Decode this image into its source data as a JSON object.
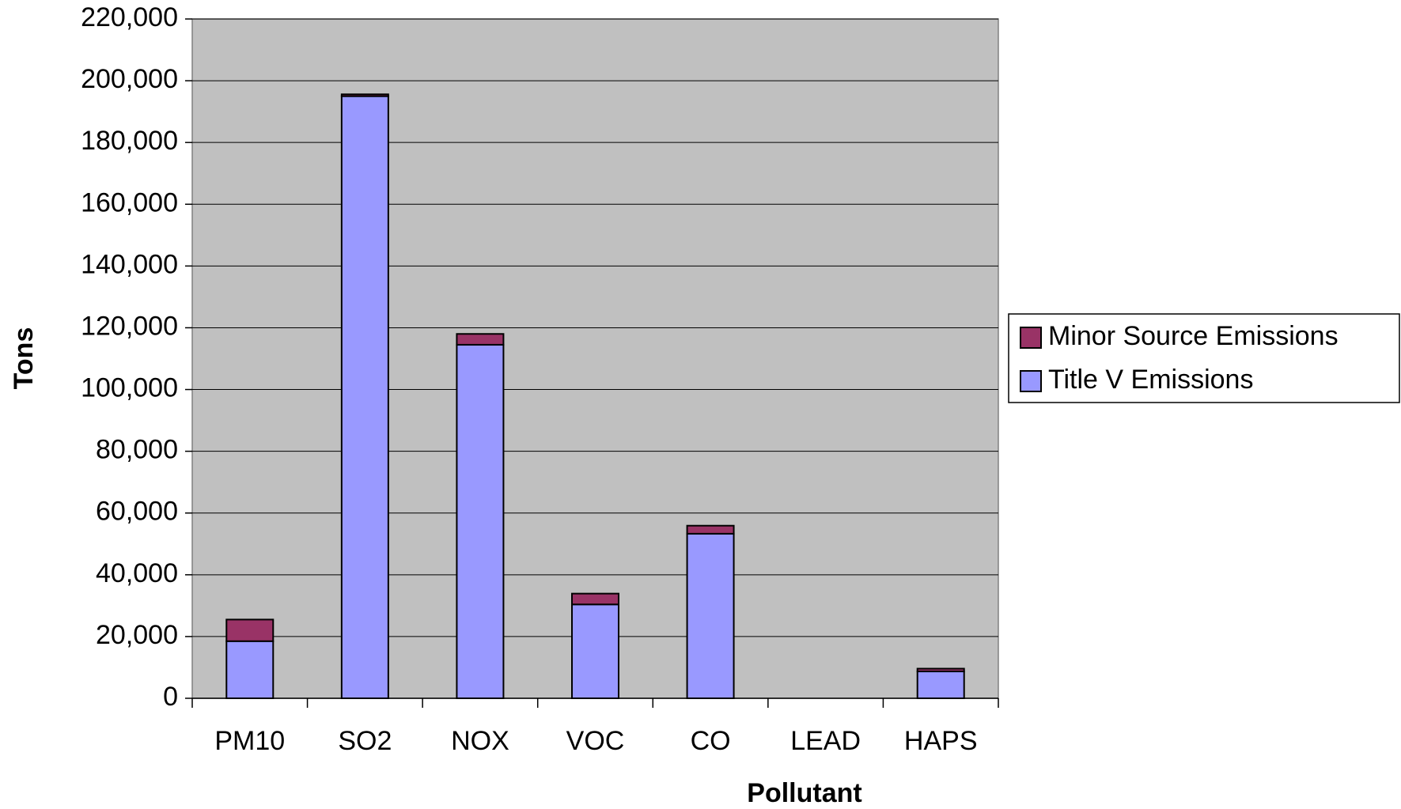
{
  "chart_data": {
    "type": "stacked_bar",
    "x_label": "Pollutant",
    "y_label": "Tons",
    "categories": [
      "PM10",
      "SO2",
      "NOX",
      "VOC",
      "CO",
      "LEAD",
      "HAPS"
    ],
    "series": [
      {
        "name": "Title V Emissions",
        "color": "#9999ff",
        "values": [
          18500,
          195000,
          114500,
          30400,
          53300,
          0,
          8700
        ]
      },
      {
        "name": "Minor Source Emissions",
        "color": "#993366",
        "values": [
          7000,
          600,
          3500,
          3500,
          2600,
          0,
          900
        ]
      }
    ],
    "ylim": [
      0,
      220000
    ],
    "yticks": [
      0,
      {
        "value": 20000,
        "label": "20,000"
      },
      {
        "value": 40000,
        "label": "40,000"
      },
      {
        "value": 60000,
        "label": "60,000"
      },
      {
        "value": 80000,
        "label": "80,000"
      },
      {
        "value": 100000,
        "label": "100,000"
      },
      {
        "value": 120000,
        "label": "120,000"
      },
      {
        "value": 140000,
        "label": "140,000"
      },
      {
        "value": 160000,
        "label": "160,000"
      },
      {
        "value": 180000,
        "label": "180,000"
      },
      {
        "value": 200000,
        "label": "200,000"
      },
      {
        "value": 220000,
        "label": "220,000"
      }
    ],
    "grid": true,
    "plot_background": "#c0c0c0",
    "legend": "right"
  }
}
